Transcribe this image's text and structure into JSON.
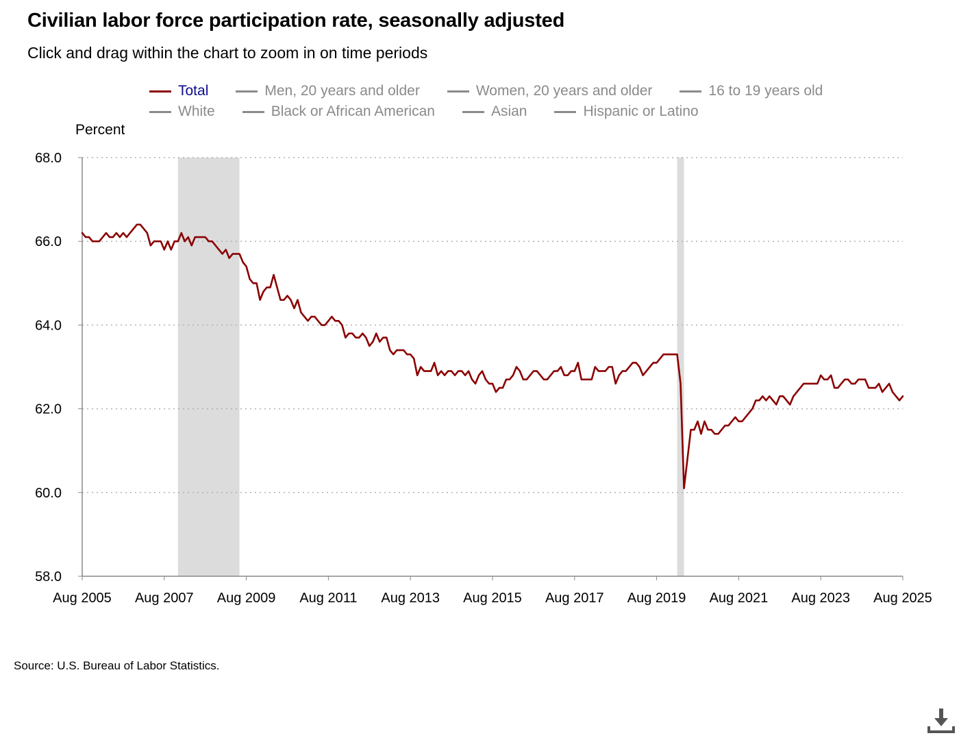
{
  "title": "Civilian labor force participation rate, seasonally adjusted",
  "subtitle": "Click and drag within the chart to zoom in on time periods",
  "legend": [
    {
      "label": "Total",
      "active": true,
      "color": "#8b0000"
    },
    {
      "label": "Men, 20 years and older",
      "active": false
    },
    {
      "label": "Women, 20 years and older",
      "active": false
    },
    {
      "label": "16 to 19 years old",
      "active": false
    },
    {
      "label": "White",
      "active": false
    },
    {
      "label": "Black or African American",
      "active": false
    },
    {
      "label": "Asian",
      "active": false
    },
    {
      "label": "Hispanic or Latino",
      "active": false
    }
  ],
  "source": "Source: U.S. Bureau of Labor Statistics.",
  "download_icon": "download-icon",
  "chart_data": {
    "type": "line",
    "title": "Civilian labor force participation rate, seasonally adjusted",
    "ylabel": "Percent",
    "xlabel": "",
    "ylim": [
      58.0,
      68.0
    ],
    "xlim": [
      "2005-08",
      "2025-08"
    ],
    "y_ticks": [
      "58.0",
      "60.0",
      "62.0",
      "64.0",
      "66.0",
      "68.0"
    ],
    "x_ticks": [
      "Aug 2005",
      "Aug 2007",
      "Aug 2009",
      "Aug 2011",
      "Aug 2013",
      "Aug 2015",
      "Aug 2017",
      "Aug 2019",
      "Aug 2021",
      "Aug 2023",
      "Aug 2025"
    ],
    "grid": "horizontal dotted",
    "recessions": [
      {
        "start": "2007-12",
        "end": "2009-06"
      },
      {
        "start": "2020-02",
        "end": "2020-04"
      }
    ],
    "series": [
      {
        "name": "Total",
        "color": "#8b0000",
        "points": [
          [
            "2005-08",
            66.2
          ],
          [
            "2005-09",
            66.1
          ],
          [
            "2005-10",
            66.1
          ],
          [
            "2005-11",
            66.0
          ],
          [
            "2005-12",
            66.0
          ],
          [
            "2006-01",
            66.0
          ],
          [
            "2006-02",
            66.1
          ],
          [
            "2006-03",
            66.2
          ],
          [
            "2006-04",
            66.1
          ],
          [
            "2006-05",
            66.1
          ],
          [
            "2006-06",
            66.2
          ],
          [
            "2006-07",
            66.1
          ],
          [
            "2006-08",
            66.2
          ],
          [
            "2006-09",
            66.1
          ],
          [
            "2006-10",
            66.2
          ],
          [
            "2006-11",
            66.3
          ],
          [
            "2006-12",
            66.4
          ],
          [
            "2007-01",
            66.4
          ],
          [
            "2007-02",
            66.3
          ],
          [
            "2007-03",
            66.2
          ],
          [
            "2007-04",
            65.9
          ],
          [
            "2007-05",
            66.0
          ],
          [
            "2007-06",
            66.0
          ],
          [
            "2007-07",
            66.0
          ],
          [
            "2007-08",
            65.8
          ],
          [
            "2007-09",
            66.0
          ],
          [
            "2007-10",
            65.8
          ],
          [
            "2007-11",
            66.0
          ],
          [
            "2007-12",
            66.0
          ],
          [
            "2008-01",
            66.2
          ],
          [
            "2008-02",
            66.0
          ],
          [
            "2008-03",
            66.1
          ],
          [
            "2008-04",
            65.9
          ],
          [
            "2008-05",
            66.1
          ],
          [
            "2008-06",
            66.1
          ],
          [
            "2008-07",
            66.1
          ],
          [
            "2008-08",
            66.1
          ],
          [
            "2008-09",
            66.0
          ],
          [
            "2008-10",
            66.0
          ],
          [
            "2008-11",
            65.9
          ],
          [
            "2008-12",
            65.8
          ],
          [
            "2009-01",
            65.7
          ],
          [
            "2009-02",
            65.8
          ],
          [
            "2009-03",
            65.6
          ],
          [
            "2009-04",
            65.7
          ],
          [
            "2009-05",
            65.7
          ],
          [
            "2009-06",
            65.7
          ],
          [
            "2009-07",
            65.5
          ],
          [
            "2009-08",
            65.4
          ],
          [
            "2009-09",
            65.1
          ],
          [
            "2009-10",
            65.0
          ],
          [
            "2009-11",
            65.0
          ],
          [
            "2009-12",
            64.6
          ],
          [
            "2010-01",
            64.8
          ],
          [
            "2010-02",
            64.9
          ],
          [
            "2010-03",
            64.9
          ],
          [
            "2010-04",
            65.2
          ],
          [
            "2010-05",
            64.9
          ],
          [
            "2010-06",
            64.6
          ],
          [
            "2010-07",
            64.6
          ],
          [
            "2010-08",
            64.7
          ],
          [
            "2010-09",
            64.6
          ],
          [
            "2010-10",
            64.4
          ],
          [
            "2010-11",
            64.6
          ],
          [
            "2010-12",
            64.3
          ],
          [
            "2011-01",
            64.2
          ],
          [
            "2011-02",
            64.1
          ],
          [
            "2011-03",
            64.2
          ],
          [
            "2011-04",
            64.2
          ],
          [
            "2011-05",
            64.1
          ],
          [
            "2011-06",
            64.0
          ],
          [
            "2011-07",
            64.0
          ],
          [
            "2011-08",
            64.1
          ],
          [
            "2011-09",
            64.2
          ],
          [
            "2011-10",
            64.1
          ],
          [
            "2011-11",
            64.1
          ],
          [
            "2011-12",
            64.0
          ],
          [
            "2012-01",
            63.7
          ],
          [
            "2012-02",
            63.8
          ],
          [
            "2012-03",
            63.8
          ],
          [
            "2012-04",
            63.7
          ],
          [
            "2012-05",
            63.7
          ],
          [
            "2012-06",
            63.8
          ],
          [
            "2012-07",
            63.7
          ],
          [
            "2012-08",
            63.5
          ],
          [
            "2012-09",
            63.6
          ],
          [
            "2012-10",
            63.8
          ],
          [
            "2012-11",
            63.6
          ],
          [
            "2012-12",
            63.7
          ],
          [
            "2013-01",
            63.7
          ],
          [
            "2013-02",
            63.4
          ],
          [
            "2013-03",
            63.3
          ],
          [
            "2013-04",
            63.4
          ],
          [
            "2013-05",
            63.4
          ],
          [
            "2013-06",
            63.4
          ],
          [
            "2013-07",
            63.3
          ],
          [
            "2013-08",
            63.3
          ],
          [
            "2013-09",
            63.2
          ],
          [
            "2013-10",
            62.8
          ],
          [
            "2013-11",
            63.0
          ],
          [
            "2013-12",
            62.9
          ],
          [
            "2014-01",
            62.9
          ],
          [
            "2014-02",
            62.9
          ],
          [
            "2014-03",
            63.1
          ],
          [
            "2014-04",
            62.8
          ],
          [
            "2014-05",
            62.9
          ],
          [
            "2014-06",
            62.8
          ],
          [
            "2014-07",
            62.9
          ],
          [
            "2014-08",
            62.9
          ],
          [
            "2014-09",
            62.8
          ],
          [
            "2014-10",
            62.9
          ],
          [
            "2014-11",
            62.9
          ],
          [
            "2014-12",
            62.8
          ],
          [
            "2015-01",
            62.9
          ],
          [
            "2015-02",
            62.7
          ],
          [
            "2015-03",
            62.6
          ],
          [
            "2015-04",
            62.8
          ],
          [
            "2015-05",
            62.9
          ],
          [
            "2015-06",
            62.7
          ],
          [
            "2015-07",
            62.6
          ],
          [
            "2015-08",
            62.6
          ],
          [
            "2015-09",
            62.4
          ],
          [
            "2015-10",
            62.5
          ],
          [
            "2015-11",
            62.5
          ],
          [
            "2015-12",
            62.7
          ],
          [
            "2016-01",
            62.7
          ],
          [
            "2016-02",
            62.8
          ],
          [
            "2016-03",
            63.0
          ],
          [
            "2016-04",
            62.9
          ],
          [
            "2016-05",
            62.7
          ],
          [
            "2016-06",
            62.7
          ],
          [
            "2016-07",
            62.8
          ],
          [
            "2016-08",
            62.9
          ],
          [
            "2016-09",
            62.9
          ],
          [
            "2016-10",
            62.8
          ],
          [
            "2016-11",
            62.7
          ],
          [
            "2016-12",
            62.7
          ],
          [
            "2017-01",
            62.8
          ],
          [
            "2017-02",
            62.9
          ],
          [
            "2017-03",
            62.9
          ],
          [
            "2017-04",
            63.0
          ],
          [
            "2017-05",
            62.8
          ],
          [
            "2017-06",
            62.8
          ],
          [
            "2017-07",
            62.9
          ],
          [
            "2017-08",
            62.9
          ],
          [
            "2017-09",
            63.1
          ],
          [
            "2017-10",
            62.7
          ],
          [
            "2017-11",
            62.7
          ],
          [
            "2017-12",
            62.7
          ],
          [
            "2018-01",
            62.7
          ],
          [
            "2018-02",
            63.0
          ],
          [
            "2018-03",
            62.9
          ],
          [
            "2018-04",
            62.9
          ],
          [
            "2018-05",
            62.9
          ],
          [
            "2018-06",
            63.0
          ],
          [
            "2018-07",
            63.0
          ],
          [
            "2018-08",
            62.6
          ],
          [
            "2018-09",
            62.8
          ],
          [
            "2018-10",
            62.9
          ],
          [
            "2018-11",
            62.9
          ],
          [
            "2018-12",
            63.0
          ],
          [
            "2019-01",
            63.1
          ],
          [
            "2019-02",
            63.1
          ],
          [
            "2019-03",
            63.0
          ],
          [
            "2019-04",
            62.8
          ],
          [
            "2019-05",
            62.9
          ],
          [
            "2019-06",
            63.0
          ],
          [
            "2019-07",
            63.1
          ],
          [
            "2019-08",
            63.1
          ],
          [
            "2019-09",
            63.2
          ],
          [
            "2019-10",
            63.3
          ],
          [
            "2019-11",
            63.3
          ],
          [
            "2019-12",
            63.3
          ],
          [
            "2020-01",
            63.3
          ],
          [
            "2020-02",
            63.3
          ],
          [
            "2020-03",
            62.6
          ],
          [
            "2020-04",
            60.1
          ],
          [
            "2020-05",
            60.8
          ],
          [
            "2020-06",
            61.5
          ],
          [
            "2020-07",
            61.5
          ],
          [
            "2020-08",
            61.7
          ],
          [
            "2020-09",
            61.4
          ],
          [
            "2020-10",
            61.7
          ],
          [
            "2020-11",
            61.5
          ],
          [
            "2020-12",
            61.5
          ],
          [
            "2021-01",
            61.4
          ],
          [
            "2021-02",
            61.4
          ],
          [
            "2021-03",
            61.5
          ],
          [
            "2021-04",
            61.6
          ],
          [
            "2021-05",
            61.6
          ],
          [
            "2021-06",
            61.7
          ],
          [
            "2021-07",
            61.8
          ],
          [
            "2021-08",
            61.7
          ],
          [
            "2021-09",
            61.7
          ],
          [
            "2021-10",
            61.8
          ],
          [
            "2021-11",
            61.9
          ],
          [
            "2021-12",
            62.0
          ],
          [
            "2022-01",
            62.2
          ],
          [
            "2022-02",
            62.2
          ],
          [
            "2022-03",
            62.3
          ],
          [
            "2022-04",
            62.2
          ],
          [
            "2022-05",
            62.3
          ],
          [
            "2022-06",
            62.2
          ],
          [
            "2022-07",
            62.1
          ],
          [
            "2022-08",
            62.3
          ],
          [
            "2022-09",
            62.3
          ],
          [
            "2022-10",
            62.2
          ],
          [
            "2022-11",
            62.1
          ],
          [
            "2022-12",
            62.3
          ],
          [
            "2023-01",
            62.4
          ],
          [
            "2023-02",
            62.5
          ],
          [
            "2023-03",
            62.6
          ],
          [
            "2023-04",
            62.6
          ],
          [
            "2023-05",
            62.6
          ],
          [
            "2023-06",
            62.6
          ],
          [
            "2023-07",
            62.6
          ],
          [
            "2023-08",
            62.8
          ],
          [
            "2023-09",
            62.7
          ],
          [
            "2023-10",
            62.7
          ],
          [
            "2023-11",
            62.8
          ],
          [
            "2023-12",
            62.5
          ],
          [
            "2024-01",
            62.5
          ],
          [
            "2024-02",
            62.6
          ],
          [
            "2024-03",
            62.7
          ],
          [
            "2024-04",
            62.7
          ],
          [
            "2024-05",
            62.6
          ],
          [
            "2024-06",
            62.6
          ],
          [
            "2024-07",
            62.7
          ],
          [
            "2024-08",
            62.7
          ],
          [
            "2024-09",
            62.7
          ],
          [
            "2024-10",
            62.5
          ],
          [
            "2024-11",
            62.5
          ],
          [
            "2024-12",
            62.5
          ],
          [
            "2025-01",
            62.6
          ],
          [
            "2025-02",
            62.4
          ],
          [
            "2025-03",
            62.5
          ],
          [
            "2025-04",
            62.6
          ],
          [
            "2025-05",
            62.4
          ],
          [
            "2025-06",
            62.3
          ],
          [
            "2025-07",
            62.2
          ],
          [
            "2025-08",
            62.3
          ]
        ]
      }
    ]
  }
}
